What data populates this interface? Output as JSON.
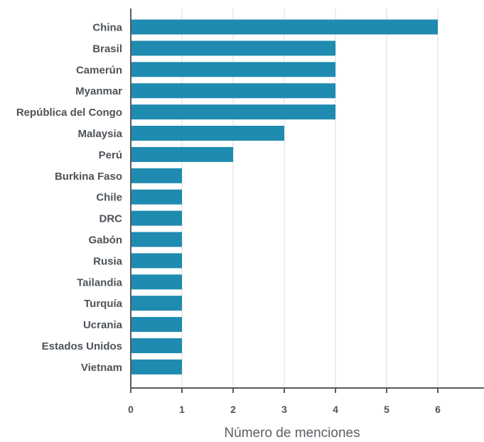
{
  "chart_data": {
    "type": "bar",
    "orientation": "horizontal",
    "categories": [
      "China",
      "Brasil",
      "Camerún",
      "Myanmar",
      "República del Congo",
      "Malaysia",
      "Perú",
      "Burkina Faso",
      "Chile",
      "DRC",
      "Gabón",
      "Rusia",
      "Tailandia",
      "Turquía",
      "Ucrania",
      "Estados Unidos",
      "Vietnam"
    ],
    "values": [
      6,
      4,
      4,
      4,
      4,
      3,
      2,
      1,
      1,
      1,
      1,
      1,
      1,
      1,
      1,
      1,
      1
    ],
    "xlabel": "Número de menciones",
    "ylabel": "",
    "xticks": [
      0,
      1,
      2,
      3,
      4,
      5,
      6
    ],
    "xlim": [
      0,
      6.9
    ],
    "grid": "vertical",
    "bar_color": "#1f8bb0",
    "grid_color": "#dcdcdc",
    "axis_color": "#555b60"
  }
}
